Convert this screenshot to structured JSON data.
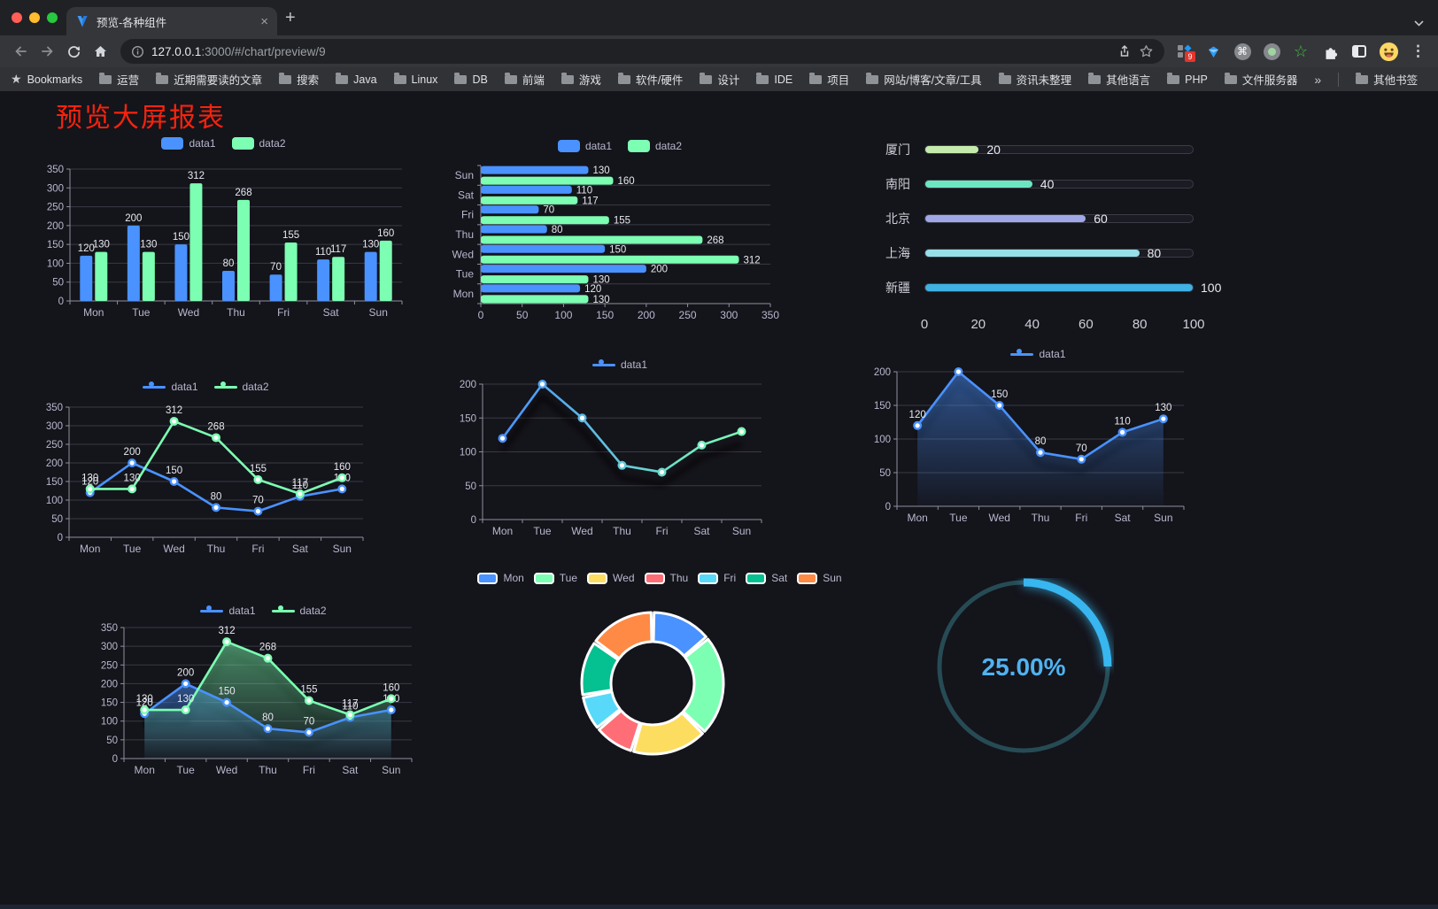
{
  "browser": {
    "tab_title": "预览-各种组件",
    "tab_close_icon": "×",
    "new_tab_icon": "+",
    "url_host": "127.0.0.1",
    "url_path": ":3000/#/chart/preview/9",
    "extension_badge": "9",
    "cmd_glyph": "⌘",
    "star_ext_glyph": "☆",
    "menu_icon": "⋮",
    "bookmarks_label": "Bookmarks",
    "bookmarks": [
      "运营",
      "近期需要读的文章",
      "搜索",
      "Java",
      "Linux",
      "DB",
      "前端",
      "游戏",
      "软件/硬件",
      "设计",
      "IDE",
      "项目",
      "网站/博客/文章/工具",
      "资讯未整理",
      "其他语言",
      "PHP",
      "文件服务器"
    ],
    "bookmarks_overflow": "»",
    "other_bookmarks_label": "其他书签"
  },
  "page": {
    "title": "预览大屏报表",
    "title_color": "#f7230c"
  },
  "chart_data": [
    {
      "id": "grouped-bar",
      "type": "bar",
      "categories": [
        "Mon",
        "Tue",
        "Wed",
        "Thu",
        "Fri",
        "Sat",
        "Sun"
      ],
      "series": [
        {
          "name": "data1",
          "color": "#4992ff",
          "values": [
            120,
            200,
            150,
            80,
            70,
            110,
            130
          ]
        },
        {
          "name": "data2",
          "color": "#7cffb2",
          "values": [
            130,
            130,
            312,
            268,
            155,
            117,
            160
          ]
        }
      ],
      "ylim": [
        0,
        350
      ],
      "ystep": 50,
      "labels": true,
      "legend_position": "top"
    },
    {
      "id": "horizontal-bar",
      "type": "bar-horizontal",
      "categories": [
        "Sun",
        "Sat",
        "Fri",
        "Thu",
        "Wed",
        "Tue",
        "Mon"
      ],
      "category_order": "top-to-bottom",
      "series": [
        {
          "name": "data1",
          "color": "#4992ff",
          "values": [
            130,
            110,
            70,
            80,
            150,
            200,
            120
          ]
        },
        {
          "name": "data2",
          "color": "#7cffb2",
          "values": [
            160,
            117,
            155,
            268,
            312,
            130,
            130
          ]
        }
      ],
      "xlim": [
        0,
        350
      ],
      "xstep": 50,
      "labels": true,
      "legend_position": "top"
    },
    {
      "id": "city-progress",
      "type": "progress",
      "items": [
        {
          "label": "厦门",
          "value": 20,
          "color": "#c4ebad"
        },
        {
          "label": "南阳",
          "value": 40,
          "color": "#6be6c1"
        },
        {
          "label": "北京",
          "value": 60,
          "color": "#a0a7e6"
        },
        {
          "label": "上海",
          "value": 80,
          "color": "#96dee8"
        },
        {
          "label": "新疆",
          "value": 100,
          "color": "#3fb1e3"
        }
      ],
      "max": 100,
      "xticks": [
        0,
        20,
        40,
        60,
        80,
        100
      ]
    },
    {
      "id": "two-line",
      "type": "line",
      "categories": [
        "Mon",
        "Tue",
        "Wed",
        "Thu",
        "Fri",
        "Sat",
        "Sun"
      ],
      "series": [
        {
          "name": "data1",
          "color": "#4992ff",
          "values": [
            120,
            200,
            150,
            80,
            70,
            110,
            130
          ]
        },
        {
          "name": "data2",
          "color": "#7cffb2",
          "values": [
            130,
            130,
            312,
            268,
            155,
            117,
            160
          ]
        }
      ],
      "ylim": [
        0,
        350
      ],
      "ystep": 50,
      "labels": true
    },
    {
      "id": "gradient-line",
      "type": "line",
      "categories": [
        "Mon",
        "Tue",
        "Wed",
        "Thu",
        "Fri",
        "Sat",
        "Sun"
      ],
      "series": [
        {
          "name": "data1",
          "color": "#4992ff",
          "color2": "#7cffb2",
          "values": [
            120,
            200,
            150,
            80,
            70,
            110,
            130
          ]
        }
      ],
      "ylim": [
        0,
        200
      ],
      "ystep": 50,
      "labels": false,
      "shadow": true
    },
    {
      "id": "single-area",
      "type": "area",
      "categories": [
        "Mon",
        "Tue",
        "Wed",
        "Thu",
        "Fri",
        "Sat",
        "Sun"
      ],
      "series": [
        {
          "name": "data1",
          "color": "#4992ff",
          "values": [
            120,
            200,
            150,
            80,
            70,
            110,
            130
          ]
        }
      ],
      "ylim": [
        0,
        200
      ],
      "ystep": 50,
      "labels": true,
      "shadow": true
    },
    {
      "id": "two-area",
      "type": "area",
      "categories": [
        "Mon",
        "Tue",
        "Wed",
        "Thu",
        "Fri",
        "Sat",
        "Sun"
      ],
      "series": [
        {
          "name": "data1",
          "color": "#4992ff",
          "values": [
            120,
            200,
            150,
            80,
            70,
            110,
            130
          ]
        },
        {
          "name": "data2",
          "color": "#7cffb2",
          "values": [
            130,
            130,
            312,
            268,
            155,
            117,
            160
          ]
        }
      ],
      "ylim": [
        0,
        350
      ],
      "ystep": 50,
      "labels": true,
      "shadow": true
    },
    {
      "id": "donut",
      "type": "pie",
      "start_angle": "top",
      "direction": "clockwise",
      "inner_radius_ratio": 0.59,
      "border_color": "#ffffff",
      "items": [
        {
          "label": "Mon",
          "value": 120,
          "color": "#4992ff"
        },
        {
          "label": "Tue",
          "value": 200,
          "color": "#7cffb2"
        },
        {
          "label": "Wed",
          "value": 150,
          "color": "#fddd60"
        },
        {
          "label": "Thu",
          "value": 80,
          "color": "#ff6e76"
        },
        {
          "label": "Fri",
          "value": 70,
          "color": "#58d9f9"
        },
        {
          "label": "Sat",
          "value": 110,
          "color": "#05c091"
        },
        {
          "label": "Sun",
          "value": 130,
          "color": "#ff8a45"
        }
      ]
    },
    {
      "id": "gauge",
      "type": "gauge",
      "value": 25,
      "max": 100,
      "display": "25.00%",
      "arc_color": "#38b6ef",
      "track_color": "#264b55",
      "text_color": "#4fb3f0"
    }
  ]
}
